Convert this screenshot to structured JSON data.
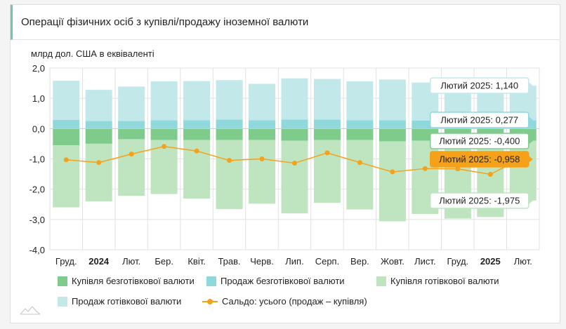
{
  "header": {
    "title": "Операції фізичних осіб з купівлі/продажу іноземної валюти"
  },
  "colors": {
    "buy_cashless": "#7fcb8c",
    "sell_cashless": "#8fd8dc",
    "buy_cash": "#bfe5c0",
    "sell_cash": "#c3e8ea",
    "balance": "#f5a11a",
    "tooltip_border": "#8fd8dc"
  },
  "chart_data": {
    "type": "bar",
    "stacked": true,
    "ylabel": "млрд дол. США в еквіваленті",
    "ylim": [
      -4.0,
      2.0
    ],
    "yticks": [
      "2,0",
      "1,0",
      "0,0",
      "-1,0",
      "-2,0",
      "-3,0",
      "-4,0"
    ],
    "ytick_values": [
      2,
      1,
      0,
      -1,
      -2,
      -3,
      -4
    ],
    "categories": [
      "Груд.",
      "2024",
      "Лют.",
      "Бер.",
      "Квіт.",
      "Трав.",
      "Черв.",
      "Лип.",
      "Серп.",
      "Вер.",
      "Жовт.",
      "Лист.",
      "Груд.",
      "2025",
      "Лют."
    ],
    "bold_categories": [
      "2024",
      "2025"
    ],
    "series": [
      {
        "name": "Купівля безготівкової валюти",
        "kind": "bar",
        "color_key": "buy_cashless",
        "values": [
          -0.55,
          -0.5,
          -0.35,
          -0.38,
          -0.38,
          -0.38,
          -0.38,
          -0.4,
          -0.38,
          -0.38,
          -0.42,
          -0.4,
          -0.4,
          -0.4,
          -0.4
        ]
      },
      {
        "name": "Продаж безготівкової валюти",
        "kind": "bar",
        "color_key": "sell_cashless",
        "values": [
          0.29,
          0.25,
          0.25,
          0.28,
          0.28,
          0.3,
          0.28,
          0.3,
          0.3,
          0.28,
          0.28,
          0.27,
          0.28,
          0.28,
          0.277
        ]
      },
      {
        "name": "Купівля готівкової валюти",
        "kind": "bar",
        "color_key": "buy_cash",
        "values": [
          -2.05,
          -1.9,
          -1.87,
          -1.78,
          -1.93,
          -2.28,
          -2.1,
          -2.4,
          -2.07,
          -2.29,
          -2.64,
          -2.42,
          -2.57,
          -2.52,
          -1.975
        ]
      },
      {
        "name": "Продаж готівкової валюти",
        "kind": "bar",
        "color_key": "sell_cash",
        "values": [
          1.29,
          1.03,
          1.14,
          1.28,
          1.29,
          1.3,
          1.2,
          1.36,
          1.34,
          1.28,
          1.34,
          1.25,
          1.2,
          1.2,
          1.14
        ]
      },
      {
        "name": "Сальдо: усього (продаж – купівля)",
        "kind": "line",
        "color_key": "balance",
        "values": [
          -1.03,
          -1.12,
          -0.84,
          -0.59,
          -0.74,
          -1.05,
          -1.0,
          -1.14,
          -0.8,
          -1.12,
          -1.43,
          -1.32,
          -1.33,
          -1.51,
          -0.958
        ]
      }
    ],
    "tooltips": [
      {
        "text": "Лютий 2025: 1,140",
        "series_index": 3,
        "value": 1.14,
        "color_key": "sell_cash"
      },
      {
        "text": "Лютий 2025: 0,277",
        "series_index": 1,
        "value": 0.277,
        "color_key": "sell_cashless"
      },
      {
        "text": "Лютий 2025: -0,400",
        "series_index": 0,
        "value": -0.4,
        "color_key": "buy_cashless"
      },
      {
        "text": "Лютий 2025: -0,958",
        "series_index": 4,
        "value": -0.958,
        "color_key": "balance"
      },
      {
        "text": "Лютий 2025: -1,975",
        "series_index": 2,
        "value": -1.975,
        "color_key": "buy_cash"
      }
    ]
  },
  "legend": {
    "items": [
      {
        "label": "Купівля безготівкової валюти",
        "color_key": "buy_cashless",
        "kind": "box"
      },
      {
        "label": "Продаж безготівкової валюти",
        "color_key": "sell_cashless",
        "kind": "box"
      },
      {
        "label": "Купівля готівкової валюти",
        "color_key": "buy_cash",
        "kind": "box"
      },
      {
        "label": "Продаж готівкової валюти",
        "color_key": "sell_cash",
        "kind": "box"
      },
      {
        "label": "Сальдо: усього (продаж – купівля)",
        "color_key": "balance",
        "kind": "line"
      }
    ]
  }
}
